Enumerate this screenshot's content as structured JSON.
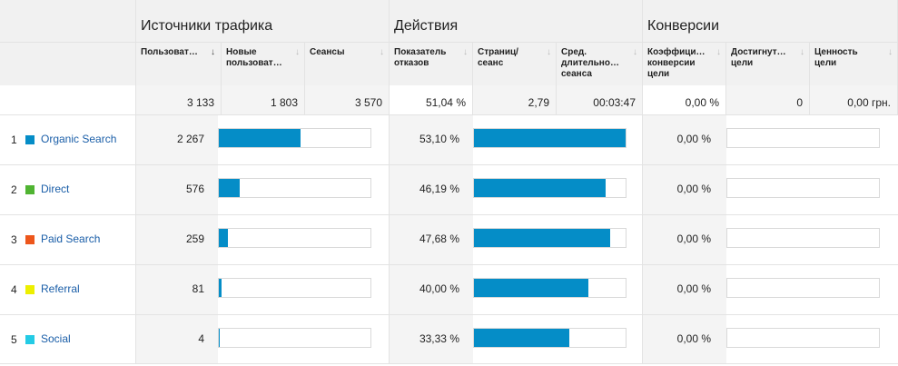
{
  "groups": {
    "traffic": "Источники трафика",
    "actions": "Действия",
    "conversions": "Конверсии"
  },
  "columns": [
    {
      "label": "Пользоват…",
      "sort": "↓",
      "active": true
    },
    {
      "label": "Новые\nпользоват…",
      "sort": "↓",
      "active": false
    },
    {
      "label": "Сеансы",
      "sort": "↓",
      "active": false
    },
    {
      "label": "Показатель\nотказов",
      "sort": "↓",
      "active": false
    },
    {
      "label": "Страниц/\nсеанс",
      "sort": "↓",
      "active": false
    },
    {
      "label": "Сред.\nдлительно…\nсеанса",
      "sort": "↓",
      "active": false
    },
    {
      "label": "Коэффици…\nконверсии\nцели",
      "sort": "↓",
      "active": false
    },
    {
      "label": "Достигнут…\nцели",
      "sort": "↓",
      "active": false
    },
    {
      "label": "Ценность\nцели",
      "sort": "↓",
      "active": false
    }
  ],
  "totals": {
    "users": "3 133",
    "new_users": "1 803",
    "sessions": "3 570",
    "bounce": "51,04 %",
    "pages": "2,79",
    "duration": "00:03:47",
    "conv_rate": "0,00 %",
    "goals": "0",
    "value": "0,00 грн."
  },
  "rows": [
    {
      "index": "1",
      "source": "Organic Search",
      "color": "#058dc7",
      "users": "2 267",
      "users_frac": 0.5368,
      "bounce": "53,10 %",
      "bounce_frac": 1.0,
      "conv": "0,00 %"
    },
    {
      "index": "2",
      "source": "Direct",
      "color": "#50b432",
      "users": "576",
      "users_frac": 0.1364,
      "bounce": "46,19 %",
      "bounce_frac": 0.8699,
      "conv": "0,00 %"
    },
    {
      "index": "3",
      "source": "Paid Search",
      "color": "#ed561b",
      "users": "259",
      "users_frac": 0.0613,
      "bounce": "47,68 %",
      "bounce_frac": 0.8979,
      "conv": "0,00 %"
    },
    {
      "index": "4",
      "source": "Referral",
      "color": "#edef00",
      "users": "81",
      "users_frac": 0.0192,
      "bounce": "40,00 %",
      "bounce_frac": 0.7533,
      "conv": "0,00 %"
    },
    {
      "index": "5",
      "source": "Social",
      "color": "#24cbe5",
      "users": "4",
      "users_frac": 0.0009,
      "bounce": "33,33 %",
      "bounce_frac": 0.6277,
      "conv": "0,00 %"
    }
  ]
}
